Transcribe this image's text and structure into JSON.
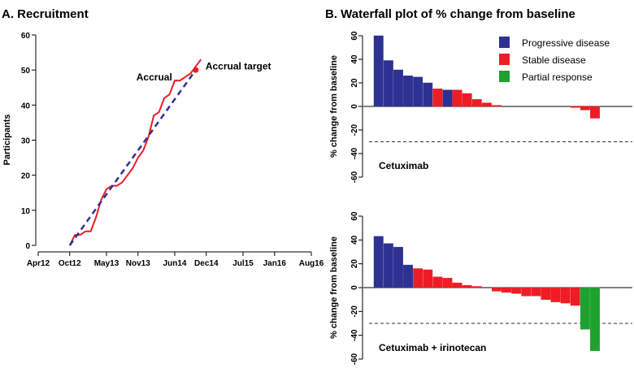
{
  "chart_data": [
    {
      "id": "A",
      "type": "line",
      "title": "A. Recruitment",
      "ylabel": "Participants",
      "xlabel": "",
      "x_ticks": [
        "Apr12",
        "Oct12",
        "May13",
        "Nov13",
        "Jun14",
        "Dec14",
        "Jul15",
        "Jan16",
        "Aug16"
      ],
      "y_ticks": [
        0,
        10,
        20,
        30,
        40,
        50,
        60
      ],
      "ylim": [
        0,
        60
      ],
      "series": [
        {
          "name": "Accrual",
          "color": "#ee1c25",
          "style": "solid",
          "points": [
            [
              "Oct12",
              0
            ],
            [
              "Nov12",
              3
            ],
            [
              "Dec12",
              3
            ],
            [
              "Jan13",
              4
            ],
            [
              "Feb13",
              4
            ],
            [
              "Mar13",
              8
            ],
            [
              "Apr13",
              13
            ],
            [
              "May13",
              16
            ],
            [
              "Jun13",
              17
            ],
            [
              "Jul13",
              17
            ],
            [
              "Aug13",
              18
            ],
            [
              "Sep13",
              20
            ],
            [
              "Oct13",
              22
            ],
            [
              "Nov13",
              25
            ],
            [
              "Dec13",
              27
            ],
            [
              "Jan14",
              31
            ],
            [
              "Feb14",
              37
            ],
            [
              "Mar14",
              38
            ],
            [
              "Apr14",
              42
            ],
            [
              "May14",
              43
            ],
            [
              "Jun14",
              47
            ],
            [
              "Jul14",
              47
            ],
            [
              "Aug14",
              48
            ],
            [
              "Sep14",
              49
            ],
            [
              "Oct14",
              51
            ],
            [
              "Nov14",
              53
            ]
          ]
        },
        {
          "name": "Accrual target",
          "color": "#2e3192",
          "style": "dashed",
          "points": [
            [
              "Oct12",
              0
            ],
            [
              "Oct14",
              50
            ]
          ]
        }
      ],
      "annotations": [
        {
          "text": "Accrual",
          "near": "Accrual"
        },
        {
          "text": "Accrual target",
          "near": "Accrual target",
          "marker": {
            "x": "Oct14",
            "y": 50
          }
        }
      ],
      "grid": false
    },
    {
      "id": "B",
      "type": "bar",
      "title": "B. Waterfall plot of % change from baseline",
      "ylabel": "% change from baseline",
      "y_ticks": [
        60,
        40,
        20,
        0,
        -20,
        -40,
        -60
      ],
      "ylim": [
        -60,
        60
      ],
      "reference_line": -30,
      "legend": {
        "placement": "top-right",
        "entries": [
          {
            "label": "Progressive disease",
            "color": "#2e3192"
          },
          {
            "label": "Stable disease",
            "color": "#ee1c25"
          },
          {
            "label": "Partial response",
            "color": "#1ea12e"
          }
        ]
      },
      "panels": [
        {
          "label": "Cetuximab",
          "bars": [
            {
              "value": 60,
              "group": "Progressive disease"
            },
            {
              "value": 39,
              "group": "Progressive disease"
            },
            {
              "value": 31,
              "group": "Progressive disease"
            },
            {
              "value": 26,
              "group": "Progressive disease"
            },
            {
              "value": 25,
              "group": "Progressive disease"
            },
            {
              "value": 20,
              "group": "Progressive disease"
            },
            {
              "value": 15,
              "group": "Stable disease"
            },
            {
              "value": 14,
              "group": "Progressive disease"
            },
            {
              "value": 14,
              "group": "Stable disease"
            },
            {
              "value": 11,
              "group": "Stable disease"
            },
            {
              "value": 6,
              "group": "Stable disease"
            },
            {
              "value": 3,
              "group": "Stable disease"
            },
            {
              "value": 1,
              "group": "Stable disease"
            },
            {
              "value": 0,
              "group": "Stable disease"
            },
            {
              "value": 0,
              "group": "Stable disease"
            },
            {
              "value": 0,
              "group": "Stable disease"
            },
            {
              "value": 0,
              "group": "Stable disease"
            },
            {
              "value": 0,
              "group": "Stable disease"
            },
            {
              "value": 0,
              "group": "Stable disease"
            },
            {
              "value": 0,
              "group": "Stable disease"
            },
            {
              "value": -1,
              "group": "Stable disease"
            },
            {
              "value": -3,
              "group": "Stable disease"
            },
            {
              "value": -10,
              "group": "Stable disease"
            }
          ]
        },
        {
          "label": "Cetuximab + irinotecan",
          "bars": [
            {
              "value": 43,
              "group": "Progressive disease"
            },
            {
              "value": 37,
              "group": "Progressive disease"
            },
            {
              "value": 34,
              "group": "Progressive disease"
            },
            {
              "value": 19,
              "group": "Progressive disease"
            },
            {
              "value": 16,
              "group": "Stable disease"
            },
            {
              "value": 15,
              "group": "Stable disease"
            },
            {
              "value": 9,
              "group": "Stable disease"
            },
            {
              "value": 8,
              "group": "Stable disease"
            },
            {
              "value": 4,
              "group": "Stable disease"
            },
            {
              "value": 2,
              "group": "Stable disease"
            },
            {
              "value": 1,
              "group": "Stable disease"
            },
            {
              "value": 0,
              "group": "Stable disease"
            },
            {
              "value": -3,
              "group": "Stable disease"
            },
            {
              "value": -4,
              "group": "Stable disease"
            },
            {
              "value": -5,
              "group": "Stable disease"
            },
            {
              "value": -7,
              "group": "Stable disease"
            },
            {
              "value": -7,
              "group": "Stable disease"
            },
            {
              "value": -10,
              "group": "Stable disease"
            },
            {
              "value": -12,
              "group": "Stable disease"
            },
            {
              "value": -13,
              "group": "Stable disease"
            },
            {
              "value": -15,
              "group": "Stable disease"
            },
            {
              "value": -35,
              "group": "Partial response"
            },
            {
              "value": -53,
              "group": "Partial response"
            }
          ]
        }
      ]
    }
  ]
}
